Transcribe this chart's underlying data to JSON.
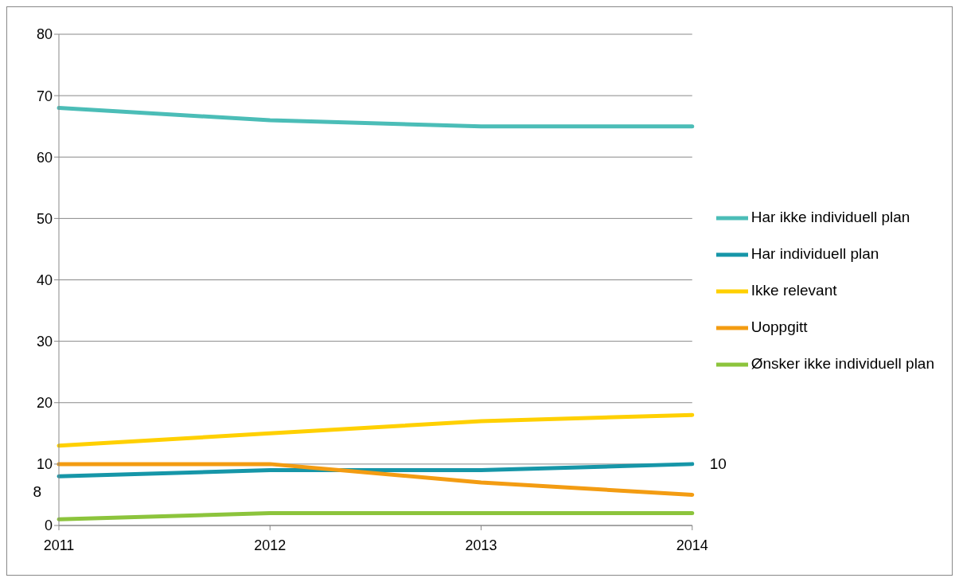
{
  "chart_data": {
    "type": "line",
    "categories": [
      "2011",
      "2012",
      "2013",
      "2014"
    ],
    "series": [
      {
        "name": "Har individuell plan",
        "color": "#1696a8",
        "values": [
          8,
          9,
          9,
          10
        ],
        "value_labels": [
          "8",
          null,
          null,
          "10"
        ]
      },
      {
        "name": "Har ikke individuell plan",
        "color": "#4bbdb7",
        "values": [
          68,
          66,
          65,
          65
        ]
      },
      {
        "name": "Ønsker ikke individuell plan",
        "color": "#8cc43c",
        "values": [
          1,
          2,
          2,
          2
        ]
      },
      {
        "name": "Ikke relevant",
        "color": "#ffd000",
        "values": [
          13,
          15,
          17,
          18
        ]
      },
      {
        "name": "Uoppgitt",
        "color": "#f39c12",
        "values": [
          10,
          10,
          7,
          5
        ]
      }
    ],
    "ylim": [
      0,
      80
    ],
    "yticks": [
      0,
      10,
      20,
      30,
      40,
      50,
      60,
      70,
      80
    ],
    "grid": "y",
    "legend": "right",
    "marker": "none",
    "line_style": "solid"
  }
}
